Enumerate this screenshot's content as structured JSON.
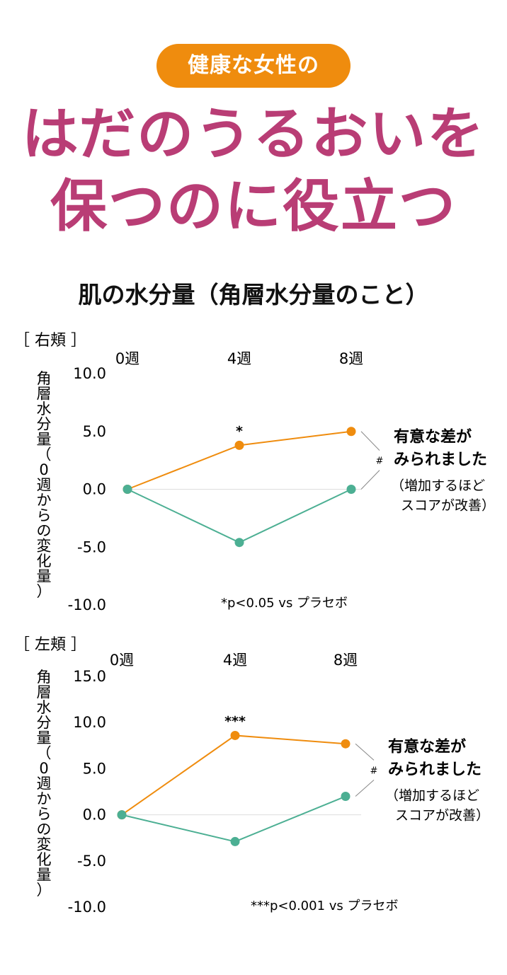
{
  "badge": "健康な女性の",
  "headline": {
    "line1": "はだのうるおいを",
    "line2": "保つのに役立つ"
  },
  "chart_section_title": "肌の水分量（角層水分量のこと）",
  "colors": {
    "orange": "#ef8c0e",
    "green": "#4caf93",
    "magenta": "#b93d75",
    "gridline": "#dddddd"
  },
  "chart_data": [
    {
      "type": "line",
      "panel_label": "［ 右頬 ］",
      "categories": [
        "0週",
        "4週",
        "8週"
      ],
      "ylabel": "角層水分量（0週からの変化量）",
      "y_ticks": [
        10.0,
        5.0,
        0.0,
        -5.0,
        -10.0
      ],
      "y_tick_labels": [
        "10.0",
        "5.0",
        "0.0",
        "-5.0",
        "-10.0"
      ],
      "ylim": [
        -10,
        10
      ],
      "series": [
        {
          "color": "#ef8c0e",
          "values": [
            0.0,
            3.8,
            5.0
          ]
        },
        {
          "color": "#4caf93",
          "values": [
            0.0,
            -4.6,
            0.0
          ]
        }
      ],
      "significance_marks": {
        "4週": "*",
        "8週": "#"
      },
      "annotation": {
        "line1": "有意な差が",
        "line2": "みられました",
        "line3": "（増加するほど",
        "line4": "スコアが改善）"
      },
      "footnote": "*p<0.05 vs プラセボ"
    },
    {
      "type": "line",
      "panel_label": "［ 左頬 ］",
      "categories": [
        "0週",
        "4週",
        "8週"
      ],
      "ylabel": "角層水分量（0週からの変化量）",
      "y_ticks": [
        15.0,
        10.0,
        5.0,
        0.0,
        -5.0,
        -10.0
      ],
      "y_tick_labels": [
        "15.0",
        "10.0",
        "5.0",
        "0.0",
        "-5.0",
        "-10.0"
      ],
      "ylim": [
        -10,
        15
      ],
      "series": [
        {
          "color": "#ef8c0e",
          "values": [
            0.0,
            8.6,
            7.7
          ]
        },
        {
          "color": "#4caf93",
          "values": [
            0.0,
            -2.9,
            2.0
          ]
        }
      ],
      "significance_marks": {
        "4週": "***",
        "8週": "#"
      },
      "annotation": {
        "line1": "有意な差が",
        "line2": "みられました",
        "line3": "（増加するほど",
        "line4": "スコアが改善）"
      },
      "footnote": "***p<0.001 vs プラセボ"
    }
  ]
}
